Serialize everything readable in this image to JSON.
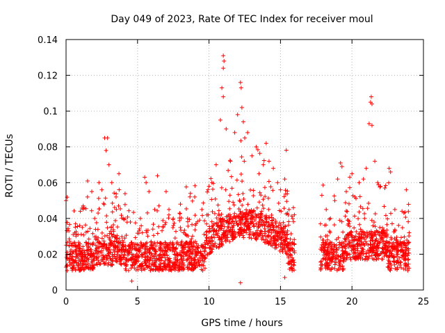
{
  "chart_data": {
    "type": "scatter",
    "title": "Day 049 of 2023, Rate Of TEC Index for receiver moul",
    "xlabel": "GPS time / hours",
    "ylabel": "ROTI / TECUs",
    "xlim": [
      0,
      25
    ],
    "ylim": [
      0,
      0.14
    ],
    "xticks": [
      0,
      5,
      10,
      15,
      20,
      25
    ],
    "xtick_labels": [
      "0",
      "5",
      "10",
      "15",
      "20",
      "25"
    ],
    "yticks": [
      0,
      0.02,
      0.04,
      0.06,
      0.08,
      0.1,
      0.12,
      0.14
    ],
    "ytick_labels": [
      "0",
      "0.02",
      "0.04",
      "0.06",
      "0.08",
      "0.1",
      "0.12",
      "0.14"
    ],
    "grid": true,
    "marker": "plus",
    "color": "#ff0000",
    "data_gap_hours": [
      16.0,
      17.8
    ],
    "series": [
      {
        "name": "ROTI",
        "points": [
          [
            0.0,
            0.05
          ],
          [
            0.2,
            0.033
          ],
          [
            0.5,
            0.031
          ],
          [
            1.0,
            0.044
          ],
          [
            1.2,
            0.047
          ],
          [
            1.5,
            0.052
          ],
          [
            1.8,
            0.055
          ],
          [
            2.0,
            0.04
          ],
          [
            2.3,
            0.06
          ],
          [
            2.5,
            0.056
          ],
          [
            2.7,
            0.085
          ],
          [
            2.9,
            0.085
          ],
          [
            2.8,
            0.078
          ],
          [
            3.0,
            0.07
          ],
          [
            3.2,
            0.06
          ],
          [
            3.5,
            0.052
          ],
          [
            3.7,
            0.065
          ],
          [
            4.0,
            0.04
          ],
          [
            4.5,
            0.038
          ],
          [
            4.6,
            0.005
          ],
          [
            5.2,
            0.04
          ],
          [
            5.5,
            0.063
          ],
          [
            5.6,
            0.06
          ],
          [
            5.8,
            0.055
          ],
          [
            6.2,
            0.045
          ],
          [
            6.5,
            0.047
          ],
          [
            7.0,
            0.055
          ],
          [
            7.2,
            0.045
          ],
          [
            7.5,
            0.04
          ],
          [
            8.0,
            0.048
          ],
          [
            8.5,
            0.04
          ],
          [
            8.7,
            0.054
          ],
          [
            9.0,
            0.052
          ],
          [
            9.5,
            0.045
          ],
          [
            10.0,
            0.058
          ],
          [
            10.2,
            0.06
          ],
          [
            10.5,
            0.07
          ],
          [
            10.8,
            0.095
          ],
          [
            10.9,
            0.113
          ],
          [
            11.0,
            0.131
          ],
          [
            11.05,
            0.128
          ],
          [
            11.0,
            0.124
          ],
          [
            11.0,
            0.108
          ],
          [
            11.2,
            0.09
          ],
          [
            11.5,
            0.072
          ],
          [
            11.8,
            0.088
          ],
          [
            12.0,
            0.098
          ],
          [
            12.2,
            0.116
          ],
          [
            12.25,
            0.113
          ],
          [
            12.3,
            0.102
          ],
          [
            12.4,
            0.094
          ],
          [
            12.5,
            0.085
          ],
          [
            12.7,
            0.088
          ],
          [
            13.0,
            0.075
          ],
          [
            13.3,
            0.08
          ],
          [
            13.5,
            0.065
          ],
          [
            13.8,
            0.07
          ],
          [
            14.0,
            0.082
          ],
          [
            14.2,
            0.072
          ],
          [
            14.5,
            0.068
          ],
          [
            14.8,
            0.06
          ],
          [
            15.0,
            0.056
          ],
          [
            15.3,
            0.062
          ],
          [
            15.6,
            0.045
          ],
          [
            15.9,
            0.046
          ],
          [
            12.2,
            0.004
          ],
          [
            15.3,
            0.007
          ],
          [
            17.8,
            0.037
          ],
          [
            18.2,
            0.045
          ],
          [
            18.5,
            0.04
          ],
          [
            18.8,
            0.05
          ],
          [
            19.0,
            0.062
          ],
          [
            19.2,
            0.071
          ],
          [
            19.3,
            0.069
          ],
          [
            19.6,
            0.055
          ],
          [
            20.0,
            0.065
          ],
          [
            20.2,
            0.052
          ],
          [
            20.5,
            0.06
          ],
          [
            20.8,
            0.062
          ],
          [
            21.0,
            0.068
          ],
          [
            21.2,
            0.093
          ],
          [
            21.3,
            0.105
          ],
          [
            21.35,
            0.108
          ],
          [
            21.4,
            0.104
          ],
          [
            21.4,
            0.092
          ],
          [
            21.6,
            0.072
          ],
          [
            21.8,
            0.06
          ],
          [
            22.0,
            0.058
          ],
          [
            22.3,
            0.057
          ],
          [
            22.6,
            0.068
          ],
          [
            22.7,
            0.066
          ],
          [
            23.0,
            0.045
          ],
          [
            23.5,
            0.044
          ],
          [
            23.8,
            0.056
          ],
          [
            24.0,
            0.032
          ]
        ]
      }
    ]
  }
}
